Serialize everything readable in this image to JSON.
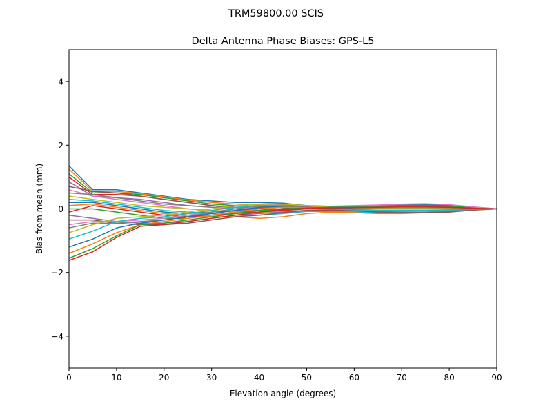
{
  "figure": {
    "suptitle": "TRM59800.00     SCIS"
  },
  "chart_data": {
    "type": "line",
    "title": "Delta Antenna Phase Biases: GPS-L5",
    "xlabel": "Elevation angle (degrees)",
    "ylabel": "Bias from mean (mm)",
    "xlim": [
      0,
      90
    ],
    "ylim": [
      -5,
      5
    ],
    "xticks": [
      0,
      10,
      20,
      30,
      40,
      50,
      60,
      70,
      80,
      90
    ],
    "yticks": [
      -4,
      -2,
      0,
      2,
      4
    ],
    "xtick_labels": [
      "0",
      "10",
      "20",
      "30",
      "40",
      "50",
      "60",
      "70",
      "80",
      "90"
    ],
    "ytick_labels": [
      "−4",
      "−2",
      "0",
      "2",
      "4"
    ],
    "grid": false,
    "legend": "none",
    "colors": [
      "#1f77b4",
      "#ff7f0e",
      "#2ca02c",
      "#d62728",
      "#9467bd",
      "#8c564b",
      "#e377c2",
      "#7f7f7f",
      "#bcbd22",
      "#17becf"
    ],
    "x": [
      0,
      5,
      10,
      15,
      20,
      25,
      30,
      35,
      40,
      45,
      50,
      55,
      60,
      65,
      70,
      75,
      80,
      85,
      90
    ],
    "series": [
      {
        "values": [
          1.35,
          0.6,
          0.6,
          0.5,
          0.4,
          0.3,
          0.25,
          0.2,
          0.2,
          0.18,
          0.1,
          0.05,
          0.05,
          0.08,
          0.1,
          0.12,
          0.1,
          0.05,
          0
        ]
      },
      {
        "values": [
          1.25,
          0.55,
          0.55,
          0.48,
          0.38,
          0.28,
          0.2,
          0.15,
          0.12,
          0.1,
          0.08,
          0.05,
          0.04,
          0.05,
          0.06,
          0.06,
          0.05,
          0.02,
          0
        ]
      },
      {
        "values": [
          1.1,
          0.5,
          0.5,
          0.45,
          0.35,
          0.25,
          0.15,
          0.1,
          0.08,
          0.06,
          0.05,
          0.04,
          0.03,
          0.04,
          0.05,
          0.05,
          0.04,
          0.02,
          0
        ]
      },
      {
        "values": [
          1.0,
          0.45,
          0.45,
          0.4,
          0.3,
          0.2,
          0.1,
          0.05,
          0.04,
          0.04,
          0.04,
          0.05,
          0.05,
          0.06,
          0.08,
          0.1,
          0.08,
          0.04,
          0
        ]
      },
      {
        "values": [
          0.85,
          0.4,
          0.35,
          0.3,
          0.2,
          0.1,
          0.05,
          0.0,
          -0.05,
          -0.05,
          0.0,
          0.03,
          0.05,
          0.06,
          0.07,
          0.07,
          0.05,
          0.02,
          0
        ]
      },
      {
        "values": [
          0.7,
          0.55,
          0.5,
          0.4,
          0.3,
          0.2,
          0.1,
          0.05,
          0.0,
          -0.02,
          0.0,
          0.02,
          0.02,
          0.03,
          0.04,
          0.04,
          0.03,
          0.01,
          0
        ]
      },
      {
        "values": [
          0.6,
          0.4,
          0.3,
          0.2,
          0.1,
          0.0,
          -0.05,
          -0.1,
          -0.1,
          -0.08,
          -0.05,
          -0.05,
          -0.05,
          -0.06,
          -0.07,
          -0.06,
          -0.05,
          -0.02,
          0
        ]
      },
      {
        "values": [
          0.5,
          0.45,
          0.35,
          0.25,
          0.15,
          0.1,
          0.05,
          0.05,
          0.05,
          0.05,
          0.05,
          0.06,
          0.07,
          0.09,
          0.12,
          0.14,
          0.12,
          0.06,
          0
        ]
      },
      {
        "values": [
          0.4,
          0.3,
          0.2,
          0.1,
          0.05,
          0.0,
          -0.05,
          -0.1,
          -0.12,
          -0.1,
          -0.05,
          -0.05,
          -0.08,
          -0.1,
          -0.1,
          -0.1,
          -0.08,
          -0.04,
          0
        ]
      },
      {
        "values": [
          0.3,
          0.25,
          0.15,
          0.05,
          -0.05,
          -0.1,
          -0.15,
          -0.2,
          -0.2,
          -0.15,
          -0.08,
          -0.08,
          -0.1,
          -0.12,
          -0.12,
          -0.1,
          -0.08,
          -0.03,
          0
        ]
      },
      {
        "values": [
          0.2,
          0.2,
          0.1,
          0.0,
          -0.1,
          -0.15,
          -0.1,
          -0.05,
          0.0,
          0.05,
          0.05,
          0.05,
          0.05,
          0.07,
          0.1,
          0.12,
          0.1,
          0.05,
          0
        ]
      },
      {
        "values": [
          0.1,
          0.15,
          0.05,
          -0.05,
          -0.15,
          -0.2,
          -0.25,
          -0.25,
          -0.3,
          -0.25,
          -0.15,
          -0.1,
          -0.12,
          -0.15,
          -0.15,
          -0.12,
          -0.1,
          -0.04,
          0
        ]
      },
      {
        "values": [
          0.0,
          0.0,
          -0.1,
          -0.2,
          -0.3,
          -0.3,
          -0.2,
          -0.1,
          -0.05,
          0.0,
          0.02,
          0.04,
          0.06,
          0.08,
          0.1,
          0.1,
          0.08,
          0.04,
          0
        ]
      },
      {
        "values": [
          -0.1,
          0.1,
          0.0,
          -0.1,
          -0.2,
          -0.25,
          -0.2,
          -0.15,
          -0.1,
          -0.05,
          0.0,
          0.0,
          0.0,
          0.0,
          0.0,
          0.0,
          0.0,
          0.0,
          0
        ]
      },
      {
        "values": [
          -0.2,
          -0.3,
          -0.4,
          -0.45,
          -0.45,
          -0.4,
          -0.3,
          -0.2,
          -0.15,
          -0.1,
          -0.05,
          -0.03,
          -0.05,
          -0.08,
          -0.1,
          -0.1,
          -0.08,
          -0.03,
          0
        ]
      },
      {
        "values": [
          -0.35,
          -0.35,
          -0.45,
          -0.5,
          -0.5,
          -0.45,
          -0.35,
          -0.25,
          -0.2,
          -0.12,
          -0.05,
          -0.04,
          -0.06,
          -0.1,
          -0.12,
          -0.12,
          -0.1,
          -0.04,
          0
        ]
      },
      {
        "values": [
          -0.5,
          -0.4,
          -0.4,
          -0.35,
          -0.3,
          -0.2,
          -0.1,
          0.0,
          0.05,
          0.08,
          0.08,
          0.08,
          0.1,
          0.12,
          0.15,
          0.16,
          0.13,
          0.06,
          0
        ]
      },
      {
        "values": [
          -0.6,
          -0.45,
          -0.45,
          -0.4,
          -0.35,
          -0.25,
          -0.1,
          0.0,
          0.1,
          0.12,
          0.1,
          0.08,
          0.06,
          0.06,
          0.06,
          0.05,
          0.04,
          0.02,
          0
        ]
      },
      {
        "values": [
          -0.75,
          -0.5,
          -0.3,
          -0.25,
          -0.2,
          -0.1,
          0.0,
          0.1,
          0.15,
          0.15,
          0.1,
          0.05,
          0.02,
          0.02,
          0.03,
          0.03,
          0.02,
          0.01,
          0
        ]
      },
      {
        "values": [
          -0.95,
          -0.7,
          -0.4,
          -0.3,
          -0.25,
          -0.15,
          -0.05,
          0.05,
          0.1,
          0.1,
          0.05,
          0.0,
          -0.03,
          -0.05,
          -0.05,
          -0.05,
          -0.04,
          -0.02,
          0
        ]
      },
      {
        "values": [
          -1.2,
          -0.95,
          -0.6,
          -0.45,
          -0.35,
          -0.25,
          -0.15,
          -0.05,
          0.05,
          0.08,
          0.06,
          0.03,
          0.0,
          0.0,
          0.0,
          0.0,
          0.0,
          0.0,
          0
        ]
      },
      {
        "values": [
          -1.4,
          -1.1,
          -0.75,
          -0.5,
          -0.4,
          -0.3,
          -0.2,
          -0.1,
          0.0,
          0.05,
          0.05,
          0.05,
          0.04,
          0.04,
          0.05,
          0.05,
          0.04,
          0.02,
          0
        ]
      },
      {
        "values": [
          -1.55,
          -1.25,
          -0.85,
          -0.5,
          -0.45,
          -0.35,
          -0.25,
          -0.15,
          -0.05,
          0.0,
          0.03,
          0.05,
          0.05,
          0.06,
          0.06,
          0.06,
          0.05,
          0.02,
          0
        ]
      },
      {
        "values": [
          -1.62,
          -1.35,
          -0.9,
          -0.55,
          -0.5,
          -0.4,
          -0.3,
          -0.2,
          -0.1,
          -0.02,
          0.02,
          0.03,
          0.04,
          0.05,
          0.06,
          0.06,
          0.05,
          0.02,
          0
        ]
      }
    ]
  }
}
